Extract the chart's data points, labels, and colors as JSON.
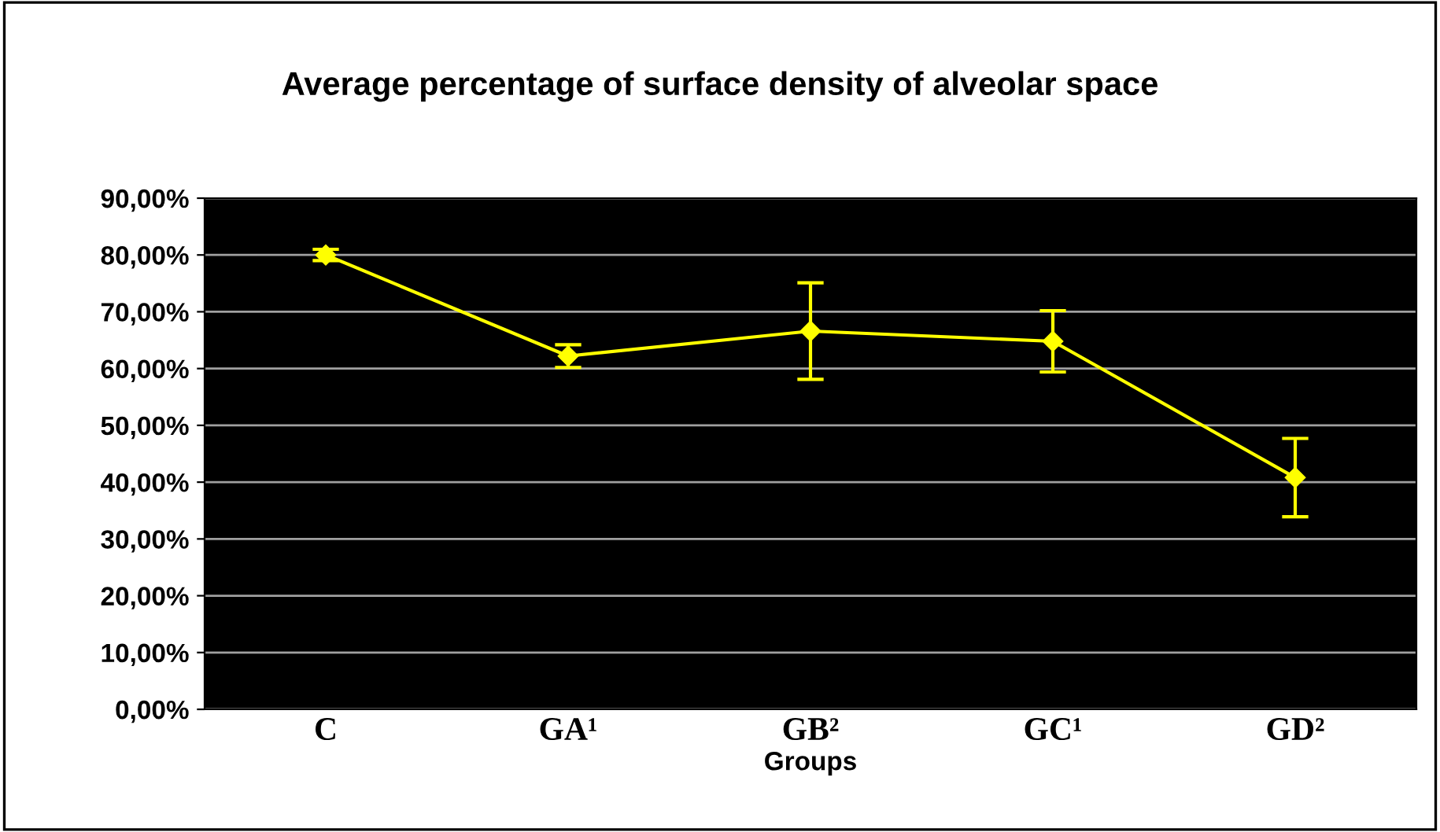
{
  "chart_data": {
    "type": "line",
    "title": "Average percentage of surface density of alveolar space",
    "xlabel": "Groups",
    "categories": [
      "C",
      "GA¹",
      "GB²",
      "GC¹",
      "GD²"
    ],
    "series": [
      {
        "color": "#ffff00",
        "values": [
          80.0,
          62.2,
          66.6,
          64.8,
          40.8
        ],
        "errors": [
          1.0,
          2.0,
          8.5,
          5.4,
          6.9
        ]
      }
    ],
    "ylim": [
      0,
      90
    ],
    "yticks": [
      {
        "value": 0,
        "label": "0,00%"
      },
      {
        "value": 10,
        "label": "10,00%"
      },
      {
        "value": 20,
        "label": "20,00%"
      },
      {
        "value": 30,
        "label": "30,00%"
      },
      {
        "value": 40,
        "label": "40,00%"
      },
      {
        "value": 50,
        "label": "50,00%"
      },
      {
        "value": 60,
        "label": "60,00%"
      },
      {
        "value": 70,
        "label": "70,00%"
      },
      {
        "value": 80,
        "label": "80,00%"
      },
      {
        "value": 90,
        "label": "90,00%"
      }
    ],
    "grid": "y",
    "legend": false,
    "marker": "diamond",
    "line_style": "solid"
  }
}
